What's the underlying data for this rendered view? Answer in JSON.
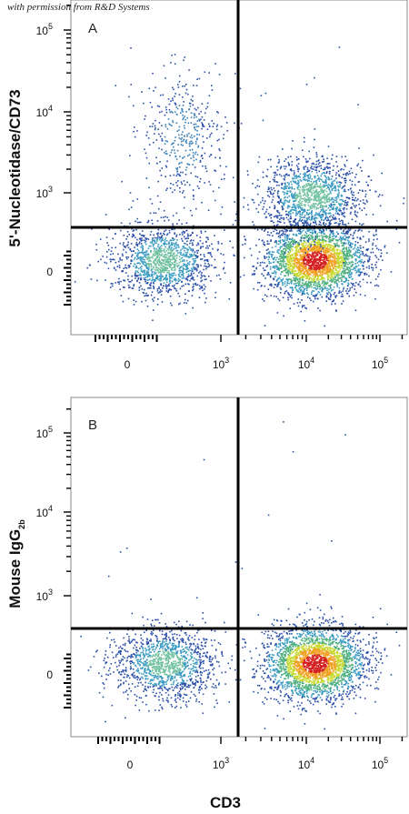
{
  "watermark": "with permission from R&D Systems",
  "chart_data": [
    {
      "type": "scatter",
      "panel": "A",
      "xlabel": "",
      "ylabel": "5'-Nucleotidase/CD73",
      "x_ticks": [
        "0",
        "10³",
        "10⁴",
        "10⁵"
      ],
      "y_ticks": [
        "0",
        "10³",
        "10⁴",
        "10⁵"
      ],
      "quadrant_gate": {
        "x": 1500,
        "y": 400
      },
      "populations": [
        {
          "x_center": 150,
          "y_center": 40,
          "density": "medium"
        },
        {
          "x_center": 300,
          "y_center": 5000,
          "density": "low"
        },
        {
          "x_center": 13000,
          "y_center": 40,
          "density": "high"
        },
        {
          "x_center": 12000,
          "y_center": 900,
          "density": "medium"
        }
      ]
    },
    {
      "type": "scatter",
      "panel": "B",
      "xlabel": "CD3",
      "ylabel": "Mouse IgG2b",
      "ylabel_main": "Mouse IgG",
      "ylabel_sub": "2b",
      "x_ticks": [
        "0",
        "10³",
        "10⁴",
        "10⁵"
      ],
      "y_ticks": [
        "0",
        "10³",
        "10⁴",
        "10⁵"
      ],
      "quadrant_gate": {
        "x": 1500,
        "y": 400
      },
      "populations": [
        {
          "x_center": 150,
          "y_center": 40,
          "density": "medium"
        },
        {
          "x_center": 13000,
          "y_center": 40,
          "density": "high"
        }
      ]
    }
  ]
}
